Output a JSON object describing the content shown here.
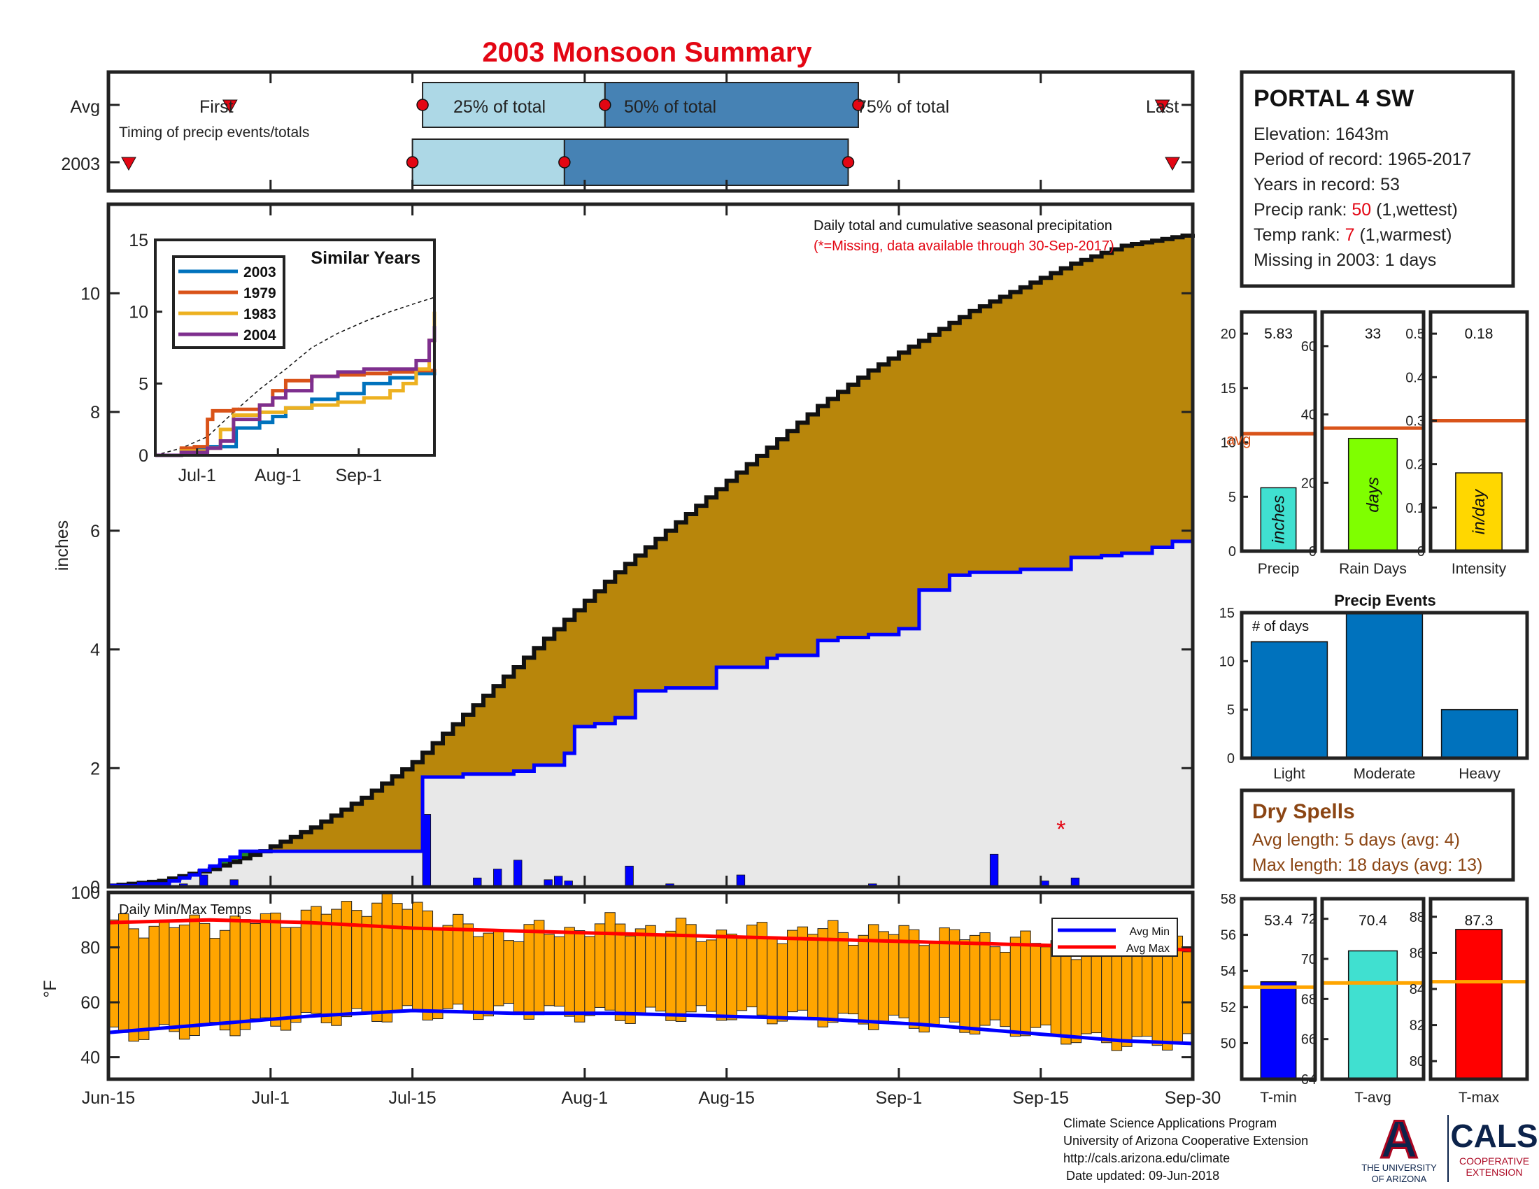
{
  "page": {
    "title": "2003 Monsoon Summary",
    "colors": {
      "title": "#e30613",
      "fill_cum": "#b8860b",
      "fill_obs": "#e8e8e8",
      "obs_line": "#0000ff",
      "cum_line": "#111111",
      "avg_bar": "#d9541a"
    }
  },
  "timing": {
    "row_labels": [
      "Avg",
      "2003"
    ],
    "note": "Timing of precip events/totals",
    "first_label": "First",
    "last_label": "Last",
    "pct_labels": [
      "25% of total",
      "50% of total",
      "75% of total"
    ],
    "avg": {
      "first": "Jun-27",
      "q25": "Jul-16",
      "q50": "Aug-3",
      "q75": "Aug-28",
      "last": "Sep-27"
    },
    "y2003": {
      "first": "Jun-17",
      "q25": "Jul-15",
      "q50": "Jul-30",
      "q75": "Aug-27",
      "last": "Sep-28"
    }
  },
  "station": {
    "name": "PORTAL 4 SW",
    "elevation": "Elevation: 1643m",
    "period": "Period of record: 1965-2017",
    "years": "Years in record: 53",
    "precip_rank_pre": "Precip rank: ",
    "precip_rank_val": "50",
    "precip_rank_post": " (1,wettest)",
    "temp_rank_pre": "Temp rank: ",
    "temp_rank_val": "7",
    "temp_rank_post": " (1,warmest)",
    "missing": "Missing in 2003: 1 days"
  },
  "precip_main": {
    "ylabel": "inches",
    "note1": "Daily total and cumulative seasonal precipitation",
    "note2": "(*=Missing, data available through 30-Sep-2017)",
    "y_ticks": [
      "0",
      "2",
      "4",
      "6",
      "8",
      "10"
    ],
    "missing_marker": "*",
    "missing_date": "Sep-17"
  },
  "x_axis": {
    "ticks": [
      "Jun-15",
      "Jul-1",
      "Jul-15",
      "Aug-1",
      "Aug-15",
      "Sep-1",
      "Sep-15",
      "Sep-30"
    ]
  },
  "similar_years": {
    "title": "Similar Years",
    "x_ticks": [
      "Jul-1",
      "Aug-1",
      "Sep-1"
    ],
    "y_ticks": [
      "0",
      "5",
      "10",
      "15"
    ],
    "legend": [
      "2003",
      "1979",
      "1983",
      "2004"
    ]
  },
  "stat_bars": {
    "precip": {
      "label": "Precip",
      "value_text": "5.83",
      "unit": "inches",
      "y_ticks": [
        "0",
        "5",
        "10",
        "15",
        "20"
      ],
      "avg_label": "avg"
    },
    "rain_days": {
      "label": "Rain Days",
      "value_text": "33",
      "unit": "days",
      "y_ticks": [
        "0",
        "20",
        "40",
        "60"
      ]
    },
    "intensity": {
      "label": "Intensity",
      "value_text": "0.18",
      "unit": "in/day",
      "y_ticks": [
        "0",
        "0.1",
        "0.2",
        "0.3",
        "0.4",
        "0.5"
      ]
    }
  },
  "precip_events": {
    "title": "Precip Events",
    "note": "# of days",
    "y_ticks": [
      "0",
      "5",
      "10",
      "15"
    ]
  },
  "dry_spells": {
    "title": "Dry Spells",
    "avg_length": "Avg length: 5 days (avg: 4)",
    "max_length": "Max length: 18 days (avg: 13)"
  },
  "temps": {
    "title": "Daily Min/Max Temps",
    "ylabel": "°F",
    "y_ticks": [
      "40",
      "60",
      "80",
      "100"
    ],
    "legend": [
      "Avg Min",
      "Avg Max"
    ]
  },
  "temp_bars": {
    "tmin": {
      "label": "T-min",
      "value_text": "53.4",
      "y_ticks": [
        "50",
        "52",
        "54",
        "56",
        "58"
      ]
    },
    "tavg": {
      "label": "T-avg",
      "value_text": "70.4",
      "y_ticks": [
        "64",
        "66",
        "68",
        "70",
        "72"
      ]
    },
    "tmax": {
      "label": "T-max",
      "value_text": "87.3",
      "y_ticks": [
        "80",
        "82",
        "84",
        "86",
        "88"
      ]
    }
  },
  "footer": {
    "line1": "Climate Science Applications Program",
    "line2": "University of Arizona Cooperative Extension",
    "line3": "http://cals.arizona.edu/climate",
    "line4": "Date updated: 09-Jun-2018",
    "ua_logo_a": "A",
    "ua_logo_text1": "THE UNIVERSITY",
    "ua_logo_text2": "OF ARIZONA",
    "cals_logo": "CALS",
    "cals_sub1": "COOPERATIVE",
    "cals_sub2": "EXTENSION"
  },
  "chart_data": [
    {
      "type": "area",
      "name": "main-precip",
      "x_start": "Jun-15",
      "x_end": "Sep-30",
      "ylim": [
        0,
        11.5
      ],
      "avg_cumulative": {
        "days": [
          0,
          5,
          10,
          15,
          20,
          25,
          30,
          35,
          40,
          45,
          50,
          55,
          60,
          65,
          70,
          75,
          80,
          85,
          90,
          95,
          100,
          107
        ],
        "inches": [
          0.02,
          0.1,
          0.3,
          0.6,
          1.0,
          1.5,
          2.1,
          2.9,
          3.7,
          4.5,
          5.3,
          6.0,
          6.7,
          7.4,
          8.1,
          8.7,
          9.2,
          9.7,
          10.1,
          10.5,
          10.8,
          11.0
        ]
      },
      "obs_cumulative": {
        "days": [
          0,
          3,
          6,
          7,
          8,
          9,
          10,
          11,
          12,
          13,
          15,
          20,
          25,
          30,
          31,
          35,
          40,
          42,
          45,
          46,
          48,
          50,
          52,
          55,
          60,
          65,
          66,
          70,
          72,
          75,
          78,
          80,
          83,
          85,
          90,
          95,
          98,
          100,
          103,
          105,
          107
        ],
        "inches": [
          0.02,
          0.05,
          0.1,
          0.15,
          0.2,
          0.28,
          0.35,
          0.45,
          0.5,
          0.6,
          0.6,
          0.6,
          0.6,
          0.6,
          1.85,
          1.9,
          1.95,
          2.05,
          2.25,
          2.7,
          2.75,
          2.85,
          3.3,
          3.35,
          3.7,
          3.85,
          3.9,
          4.15,
          4.2,
          4.25,
          4.35,
          5.0,
          5.25,
          5.3,
          5.35,
          5.55,
          5.58,
          5.62,
          5.72,
          5.82,
          5.83
        ]
      },
      "daily_bars": {
        "days": [
          7,
          9,
          12,
          31,
          36,
          38,
          40,
          43,
          44,
          45,
          51,
          55,
          62,
          75,
          87,
          92,
          95
        ],
        "inches": [
          0.05,
          0.2,
          0.12,
          1.22,
          0.15,
          0.3,
          0.45,
          0.12,
          0.18,
          0.1,
          0.35,
          0.05,
          0.2,
          0.05,
          0.55,
          0.1,
          0.15
        ]
      }
    },
    {
      "type": "line",
      "name": "similar-years",
      "x_start": "Jun-15",
      "x_end": "Sep-30",
      "ylim": [
        0,
        15
      ],
      "series": [
        {
          "name": "2003",
          "days": [
            0,
            10,
            20,
            30,
            31,
            40,
            45,
            50,
            60,
            70,
            80,
            90,
            100,
            107
          ],
          "values": [
            0,
            0.4,
            0.6,
            0.6,
            1.9,
            2.3,
            2.7,
            3.3,
            3.9,
            4.3,
            5.0,
            5.4,
            5.7,
            5.8
          ]
        },
        {
          "name": "1979",
          "days": [
            0,
            10,
            15,
            20,
            22,
            30,
            40,
            45,
            50,
            60,
            70,
            80,
            90,
            100,
            107
          ],
          "values": [
            0,
            0.5,
            0.6,
            2.5,
            3.1,
            3.2,
            3.5,
            4.5,
            5.2,
            5.5,
            5.6,
            5.7,
            5.8,
            5.9,
            6.0
          ]
        },
        {
          "name": "1983",
          "days": [
            0,
            10,
            20,
            25,
            30,
            40,
            50,
            60,
            70,
            80,
            90,
            95,
            100,
            105,
            107
          ],
          "values": [
            0,
            0.3,
            0.5,
            1.8,
            2.8,
            3.0,
            3.3,
            3.5,
            3.7,
            4.0,
            4.5,
            5.0,
            6.0,
            8.0,
            10.0
          ]
        },
        {
          "name": "2004",
          "days": [
            0,
            10,
            20,
            25,
            30,
            40,
            45,
            50,
            60,
            70,
            80,
            90,
            100,
            105,
            107
          ],
          "values": [
            0,
            0.2,
            0.5,
            1.0,
            2.5,
            3.5,
            4.0,
            4.5,
            5.5,
            5.8,
            6.0,
            6.0,
            6.6,
            8.0,
            9.0
          ]
        }
      ],
      "avg_line": {
        "days": [
          0,
          10,
          20,
          30,
          40,
          50,
          60,
          70,
          80,
          90,
          100,
          107
        ],
        "values": [
          0,
          0.5,
          1.3,
          3.0,
          4.6,
          6.0,
          7.5,
          8.5,
          9.3,
          10.0,
          10.6,
          11.0
        ]
      }
    },
    {
      "type": "bar",
      "name": "precip-total",
      "categories": [
        "Precip"
      ],
      "values": [
        5.83
      ],
      "avg": 10.8,
      "ylim": [
        0,
        22
      ]
    },
    {
      "type": "bar",
      "name": "rain-days",
      "categories": [
        "Rain Days"
      ],
      "values": [
        33
      ],
      "avg": 36,
      "ylim": [
        0,
        70
      ]
    },
    {
      "type": "bar",
      "name": "intensity",
      "categories": [
        "Intensity"
      ],
      "values": [
        0.18
      ],
      "avg": 0.3,
      "ylim": [
        0,
        0.55
      ]
    },
    {
      "type": "bar",
      "name": "precip-events",
      "categories": [
        "Light",
        "Moderate",
        "Heavy"
      ],
      "values": [
        12,
        15,
        5
      ],
      "ylim": [
        0,
        15
      ]
    },
    {
      "type": "bar",
      "name": "daily-temps",
      "x_start": "Jun-15",
      "x_end": "Sep-30",
      "ylim": [
        32,
        100
      ],
      "tmax_keys": {
        "days": [
          0,
          10,
          20,
          25,
          30,
          35,
          40,
          50,
          60,
          70,
          80,
          90,
          95,
          100,
          107
        ],
        "values": [
          88,
          88,
          92,
          96,
          95,
          86,
          85,
          88,
          85,
          86,
          85,
          82,
          80,
          82,
          80
        ]
      },
      "tmin_keys": {
        "days": [
          0,
          10,
          20,
          30,
          40,
          50,
          60,
          70,
          80,
          90,
          95,
          100,
          107
        ],
        "values": [
          48,
          50,
          54,
          56,
          57,
          55,
          56,
          54,
          52,
          50,
          47,
          45,
          46
        ]
      },
      "avg_max": {
        "days": [
          0,
          10,
          20,
          30,
          40,
          50,
          60,
          70,
          80,
          90,
          100,
          107
        ],
        "values": [
          89,
          90,
          89,
          87,
          86,
          85,
          84,
          83,
          82,
          81,
          80,
          79
        ]
      },
      "avg_min": {
        "days": [
          0,
          10,
          20,
          30,
          40,
          50,
          60,
          70,
          80,
          90,
          100,
          107
        ],
        "values": [
          49,
          52,
          55,
          57,
          56,
          56,
          55,
          54,
          52,
          49,
          46,
          45
        ]
      }
    },
    {
      "type": "bar",
      "name": "tmin",
      "categories": [
        "T-min"
      ],
      "values": [
        53.4
      ],
      "avg": 53.1,
      "ylim": [
        48,
        58
      ]
    },
    {
      "type": "bar",
      "name": "tavg",
      "categories": [
        "T-avg"
      ],
      "values": [
        70.4
      ],
      "avg": 68.8,
      "ylim": [
        64,
        73
      ]
    },
    {
      "type": "bar",
      "name": "tmax",
      "categories": [
        "T-max"
      ],
      "values": [
        87.3
      ],
      "avg": 84.4,
      "ylim": [
        79,
        89
      ]
    }
  ]
}
